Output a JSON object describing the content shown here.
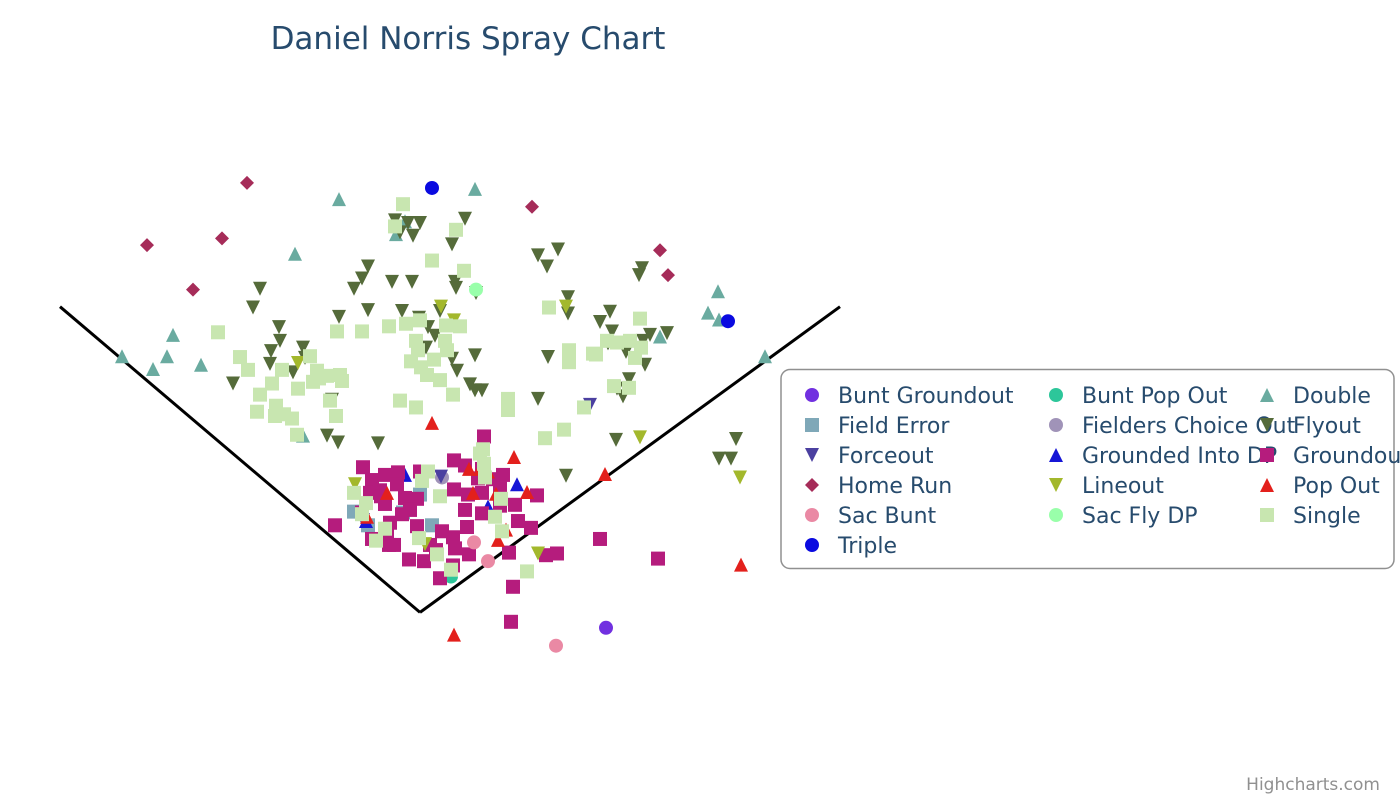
{
  "chart_data": {
    "type": "scatter",
    "title": "Daniel Norris Spray Chart",
    "xlim": [
      -360,
      420
    ],
    "ylim": [
      -85,
      600
    ],
    "x_axis_visible": false,
    "y_axis_visible": false,
    "grid": false,
    "legend_placement": "right",
    "credits": "Highcharts.com",
    "foul_lines": [
      {
        "name": "left-foul-line",
        "points": [
          [
            -360,
            358
          ],
          [
            0,
            0
          ]
        ]
      },
      {
        "name": "right-foul-line",
        "points": [
          [
            0,
            0
          ],
          [
            420,
            358
          ]
        ]
      }
    ],
    "series": [
      {
        "name": "Bunt Groundout",
        "symbol": "circle",
        "color": "#7130e0",
        "points": [
          [
            186,
            -18
          ]
        ]
      },
      {
        "name": "Bunt Pop Out",
        "symbol": "circle",
        "color": "#2dc69a",
        "points": [
          [
            31,
            42
          ]
        ]
      },
      {
        "name": "Double",
        "symbol": "triangle",
        "color": "#6aaba0",
        "points": [
          [
            -298,
            300
          ],
          [
            -267,
            285
          ],
          [
            -253,
            300
          ],
          [
            -247,
            325
          ],
          [
            -219,
            290
          ],
          [
            -125,
            420
          ],
          [
            -81,
            484
          ],
          [
            -24,
            443
          ],
          [
            -15,
            458
          ],
          [
            55,
            496
          ],
          [
            240,
            323
          ],
          [
            288,
            351
          ],
          [
            298,
            376
          ],
          [
            299,
            343
          ],
          [
            345,
            300
          ],
          [
            -117,
            207
          ]
        ]
      },
      {
        "name": "Field Error",
        "symbol": "square",
        "color": "#7fa8b8",
        "points": [
          [
            -66,
            118
          ],
          [
            -17,
            117
          ],
          [
            0,
            138
          ],
          [
            12,
            102
          ],
          [
            -52,
            102
          ]
        ]
      },
      {
        "name": "Fielders Choice Out",
        "symbol": "circle",
        "color": "#a093b8",
        "points": [
          [
            22,
            158
          ]
        ]
      },
      {
        "name": "Flyout",
        "symbol": "triangle-down",
        "color": "#556b3a",
        "points": [
          [
            -25,
            459
          ],
          [
            -12,
            456
          ],
          [
            0,
            456
          ],
          [
            45,
            461
          ],
          [
            -7,
            441
          ],
          [
            -20,
            445
          ],
          [
            32,
            431
          ],
          [
            -52,
            405
          ],
          [
            -58,
            391
          ],
          [
            -28,
            387
          ],
          [
            -8,
            387
          ],
          [
            35,
            387
          ],
          [
            56,
            374
          ],
          [
            -160,
            379
          ],
          [
            -167,
            357
          ],
          [
            -66,
            379
          ],
          [
            -52,
            354
          ],
          [
            -81,
            346
          ],
          [
            -18,
            353
          ],
          [
            20,
            353
          ],
          [
            36,
            380
          ],
          [
            -141,
            334
          ],
          [
            -117,
            310
          ],
          [
            -127,
            281
          ],
          [
            -115,
            298
          ],
          [
            -140,
            318
          ],
          [
            -149,
            306
          ],
          [
            -150,
            291
          ],
          [
            -187,
            268
          ],
          [
            -93,
            207
          ],
          [
            -82,
            199
          ],
          [
            -42,
            198
          ],
          [
            8,
            334
          ],
          [
            6,
            310
          ],
          [
            32,
            297
          ],
          [
            55,
            301
          ],
          [
            37,
            283
          ],
          [
            -1,
            345
          ],
          [
            15,
            324
          ],
          [
            50,
            267
          ],
          [
            55,
            260
          ],
          [
            62,
            260
          ],
          [
            118,
            418
          ],
          [
            138,
            425
          ],
          [
            127,
            405
          ],
          [
            219,
            395
          ],
          [
            192,
            329
          ],
          [
            247,
            327
          ],
          [
            230,
            325
          ],
          [
            180,
            340
          ],
          [
            190,
            352
          ],
          [
            148,
            369
          ],
          [
            128,
            299
          ],
          [
            206,
            305
          ],
          [
            223,
            318
          ],
          [
            188,
            315
          ],
          [
            209,
            273
          ],
          [
            197,
            262
          ],
          [
            203,
            253
          ],
          [
            225,
            290
          ],
          [
            222,
            403
          ],
          [
            148,
            350
          ],
          [
            118,
            250
          ],
          [
            196,
            202
          ],
          [
            316,
            203
          ],
          [
            299,
            180
          ],
          [
            311,
            180
          ],
          [
            146,
            160
          ],
          [
            -88,
            249
          ]
        ]
      },
      {
        "name": "Forceout",
        "symbol": "triangle-down",
        "color": "#4b40a0",
        "points": [
          [
            170,
            243
          ],
          [
            -57,
            108
          ],
          [
            21,
            159
          ]
        ]
      },
      {
        "name": "Grounded Into DP",
        "symbol": "triangle",
        "color": "#1616d6",
        "points": [
          [
            -15,
            161
          ],
          [
            97,
            150
          ],
          [
            68,
            124
          ],
          [
            -54,
            107
          ],
          [
            80,
            127
          ]
        ]
      },
      {
        "name": "Groundout",
        "symbol": "square",
        "color": "#b51c7d",
        "points": [
          [
            -57,
            170
          ],
          [
            -48,
            155
          ],
          [
            -35,
            161
          ],
          [
            -22,
            164
          ],
          [
            -50,
            140
          ],
          [
            -40,
            143
          ],
          [
            -23,
            150
          ],
          [
            -15,
            134
          ],
          [
            -35,
            127
          ],
          [
            -18,
            115
          ],
          [
            -3,
            133
          ],
          [
            0,
            165
          ],
          [
            34,
            178
          ],
          [
            45,
            172
          ],
          [
            62,
            168
          ],
          [
            34,
            144
          ],
          [
            48,
            138
          ],
          [
            62,
            140
          ],
          [
            80,
            145
          ],
          [
            45,
            120
          ],
          [
            62,
            116
          ],
          [
            80,
            125
          ],
          [
            95,
            126
          ],
          [
            98,
            107
          ],
          [
            117,
            137
          ],
          [
            111,
            99
          ],
          [
            -85,
            102
          ],
          [
            -58,
            117
          ],
          [
            -33,
            92
          ],
          [
            -26,
            79
          ],
          [
            -11,
            62
          ],
          [
            16,
            73
          ],
          [
            33,
            55
          ],
          [
            49,
            68
          ],
          [
            20,
            40
          ],
          [
            64,
            206
          ],
          [
            126,
            67
          ],
          [
            137,
            69
          ],
          [
            89,
            70
          ],
          [
            180,
            86
          ],
          [
            238,
            63
          ],
          [
            93,
            30
          ],
          [
            91,
            -11
          ],
          [
            -48,
            86
          ],
          [
            -39,
            136
          ],
          [
            -10,
            120
          ],
          [
            -30,
            105
          ],
          [
            -3,
            101
          ],
          [
            73,
            156
          ],
          [
            58,
            157
          ],
          [
            83,
            161
          ],
          [
            -31,
            79
          ],
          [
            10,
            79
          ],
          [
            35,
            75
          ],
          [
            22,
            95
          ],
          [
            4,
            60
          ],
          [
            33,
            88
          ],
          [
            47,
            100
          ]
        ]
      },
      {
        "name": "Home Run",
        "symbol": "diamond",
        "color": "#a62c59",
        "points": [
          [
            -173,
            503
          ],
          [
            -198,
            438
          ],
          [
            -273,
            430
          ],
          [
            -227,
            378
          ],
          [
            112,
            475
          ],
          [
            240,
            424
          ],
          [
            248,
            395
          ]
        ]
      },
      {
        "name": "Lineout",
        "symbol": "triangle-down",
        "color": "#a3b82c",
        "points": [
          [
            21,
            358
          ],
          [
            34,
            342
          ],
          [
            146,
            358
          ],
          [
            -122,
            292
          ],
          [
            -65,
            150
          ],
          [
            5,
            80
          ],
          [
            118,
            69
          ],
          [
            220,
            205
          ],
          [
            320,
            158
          ]
        ]
      },
      {
        "name": "Pop Out",
        "symbol": "triangle",
        "color": "#e3201c",
        "points": [
          [
            12,
            222
          ],
          [
            49,
            168
          ],
          [
            60,
            168
          ],
          [
            94,
            182
          ],
          [
            -33,
            140
          ],
          [
            53,
            140
          ],
          [
            76,
            139
          ],
          [
            -53,
            112
          ],
          [
            86,
            97
          ],
          [
            78,
            85
          ],
          [
            185,
            162
          ],
          [
            321,
            56
          ],
          [
            34,
            -26
          ],
          [
            107,
            141
          ],
          [
            68,
            165
          ]
        ]
      },
      {
        "name": "Sac Bunt",
        "symbol": "circle",
        "color": "#ea89a4",
        "points": [
          [
            54,
            82
          ],
          [
            68,
            60
          ],
          [
            136,
            -39
          ]
        ]
      },
      {
        "name": "Sac Fly DP",
        "symbol": "circle",
        "color": "#99ffaa",
        "points": [
          [
            56,
            378
          ]
        ]
      },
      {
        "name": "Single",
        "symbol": "square",
        "color": "#c8e6b0",
        "points": [
          [
            -17,
            478
          ],
          [
            -25,
            452
          ],
          [
            36,
            448
          ],
          [
            12,
            412
          ],
          [
            44,
            400
          ],
          [
            -202,
            328
          ],
          [
            -180,
            299
          ],
          [
            -172,
            284
          ],
          [
            -160,
            255
          ],
          [
            -148,
            268
          ],
          [
            -138,
            284
          ],
          [
            -122,
            262
          ],
          [
            -107,
            270
          ],
          [
            -101,
            274
          ],
          [
            -90,
            248
          ],
          [
            -103,
            283
          ],
          [
            -80,
            278
          ],
          [
            -58,
            329
          ],
          [
            -31,
            335
          ],
          [
            -14,
            338
          ],
          [
            0,
            342
          ],
          [
            26,
            336
          ],
          [
            40,
            335
          ],
          [
            -163,
            235
          ],
          [
            -145,
            230
          ],
          [
            -128,
            227
          ],
          [
            -144,
            242
          ],
          [
            -123,
            208
          ],
          [
            -83,
            329
          ],
          [
            -136,
            232
          ],
          [
            -84,
            230
          ],
          [
            -4,
            240
          ],
          [
            -9,
            294
          ],
          [
            -2,
            307
          ],
          [
            1,
            287
          ],
          [
            14,
            296
          ],
          [
            27,
            307
          ],
          [
            7,
            278
          ],
          [
            20,
            272
          ],
          [
            -110,
            300
          ],
          [
            -93,
            277
          ],
          [
            -78,
            271
          ],
          [
            -4,
            318
          ],
          [
            25,
            318
          ],
          [
            88,
            237
          ],
          [
            88,
            250
          ],
          [
            129,
            357
          ],
          [
            149,
            307
          ],
          [
            173,
            303
          ],
          [
            187,
            318
          ],
          [
            197,
            316
          ],
          [
            210,
            318
          ],
          [
            220,
            344
          ],
          [
            176,
            302
          ],
          [
            149,
            293
          ],
          [
            194,
            265
          ],
          [
            209,
            263
          ],
          [
            215,
            298
          ],
          [
            221,
            310
          ],
          [
            164,
            240
          ],
          [
            125,
            204
          ],
          [
            144,
            214
          ],
          [
            63,
            191
          ],
          [
            64,
            174
          ],
          [
            65,
            158
          ],
          [
            2,
            154
          ],
          [
            20,
            136
          ],
          [
            -1,
            87
          ],
          [
            -44,
            84
          ],
          [
            -58,
            115
          ],
          [
            75,
            112
          ],
          [
            8,
            165
          ],
          [
            -66,
            140
          ],
          [
            -54,
            128
          ],
          [
            -35,
            98
          ],
          [
            31,
            50
          ],
          [
            17,
            68
          ],
          [
            82,
            95
          ],
          [
            107,
            48
          ],
          [
            -20,
            248
          ],
          [
            33,
            255
          ],
          [
            60,
            186
          ],
          [
            81,
            133
          ]
        ]
      },
      {
        "name": "Triple",
        "symbol": "circle",
        "color": "#0a0ae0",
        "points": [
          [
            12,
            497
          ],
          [
            308,
            341
          ]
        ]
      }
    ]
  }
}
